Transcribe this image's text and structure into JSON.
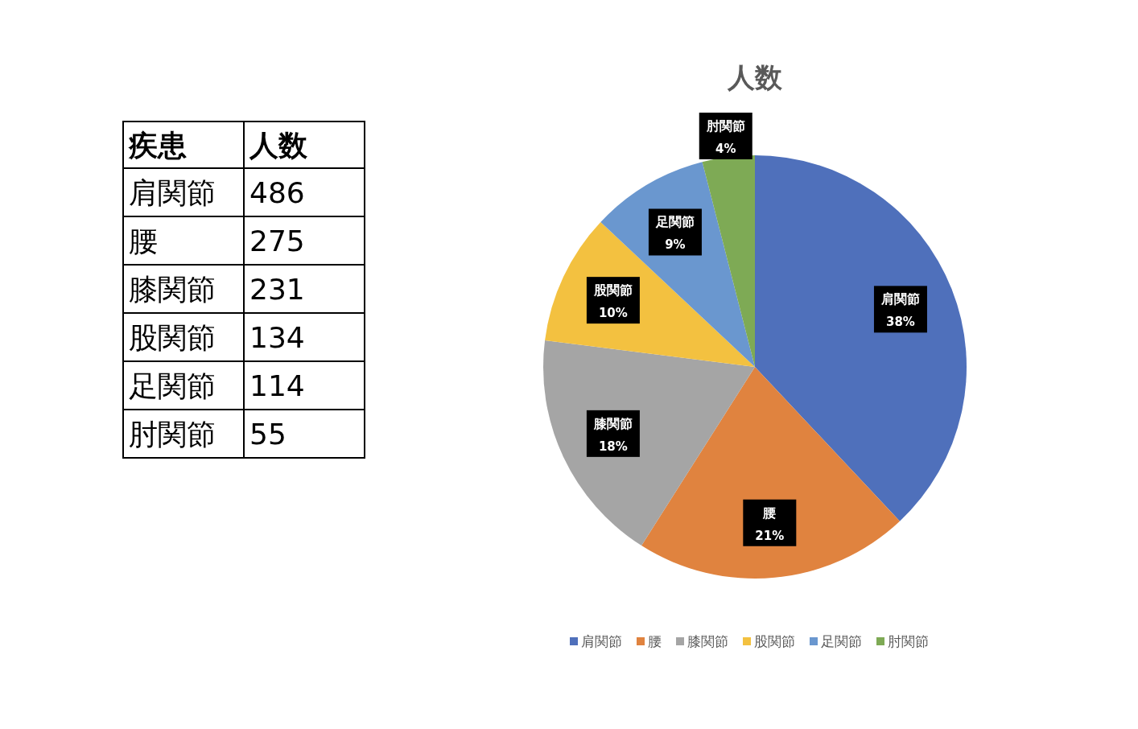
{
  "chart_data": [
    {
      "type": "other",
      "annotations": [
        "疾患",
        "人数"
      ],
      "categories": [
        "肩関節",
        "腰",
        "膝関節",
        "股関節",
        "足関節",
        "肘関節"
      ],
      "values": [
        486,
        275,
        231,
        134,
        114,
        55
      ],
      "data_labels": true
    },
    {
      "type": "pie",
      "title": "人数",
      "categories": [
        "肩関節",
        "腰",
        "膝関節",
        "股関節",
        "足関節",
        "肘関節"
      ],
      "values": [
        38,
        21,
        18,
        10,
        9,
        4
      ],
      "value_labels": [
        "38%",
        "21%",
        "18%",
        "10%",
        "9%",
        "4%"
      ],
      "colors": [
        "#4f70bb",
        "#e0833f",
        "#a5a5a5",
        "#f3c140",
        "#6a97cf",
        "#7eaa55"
      ],
      "legend": "bottom"
    }
  ]
}
